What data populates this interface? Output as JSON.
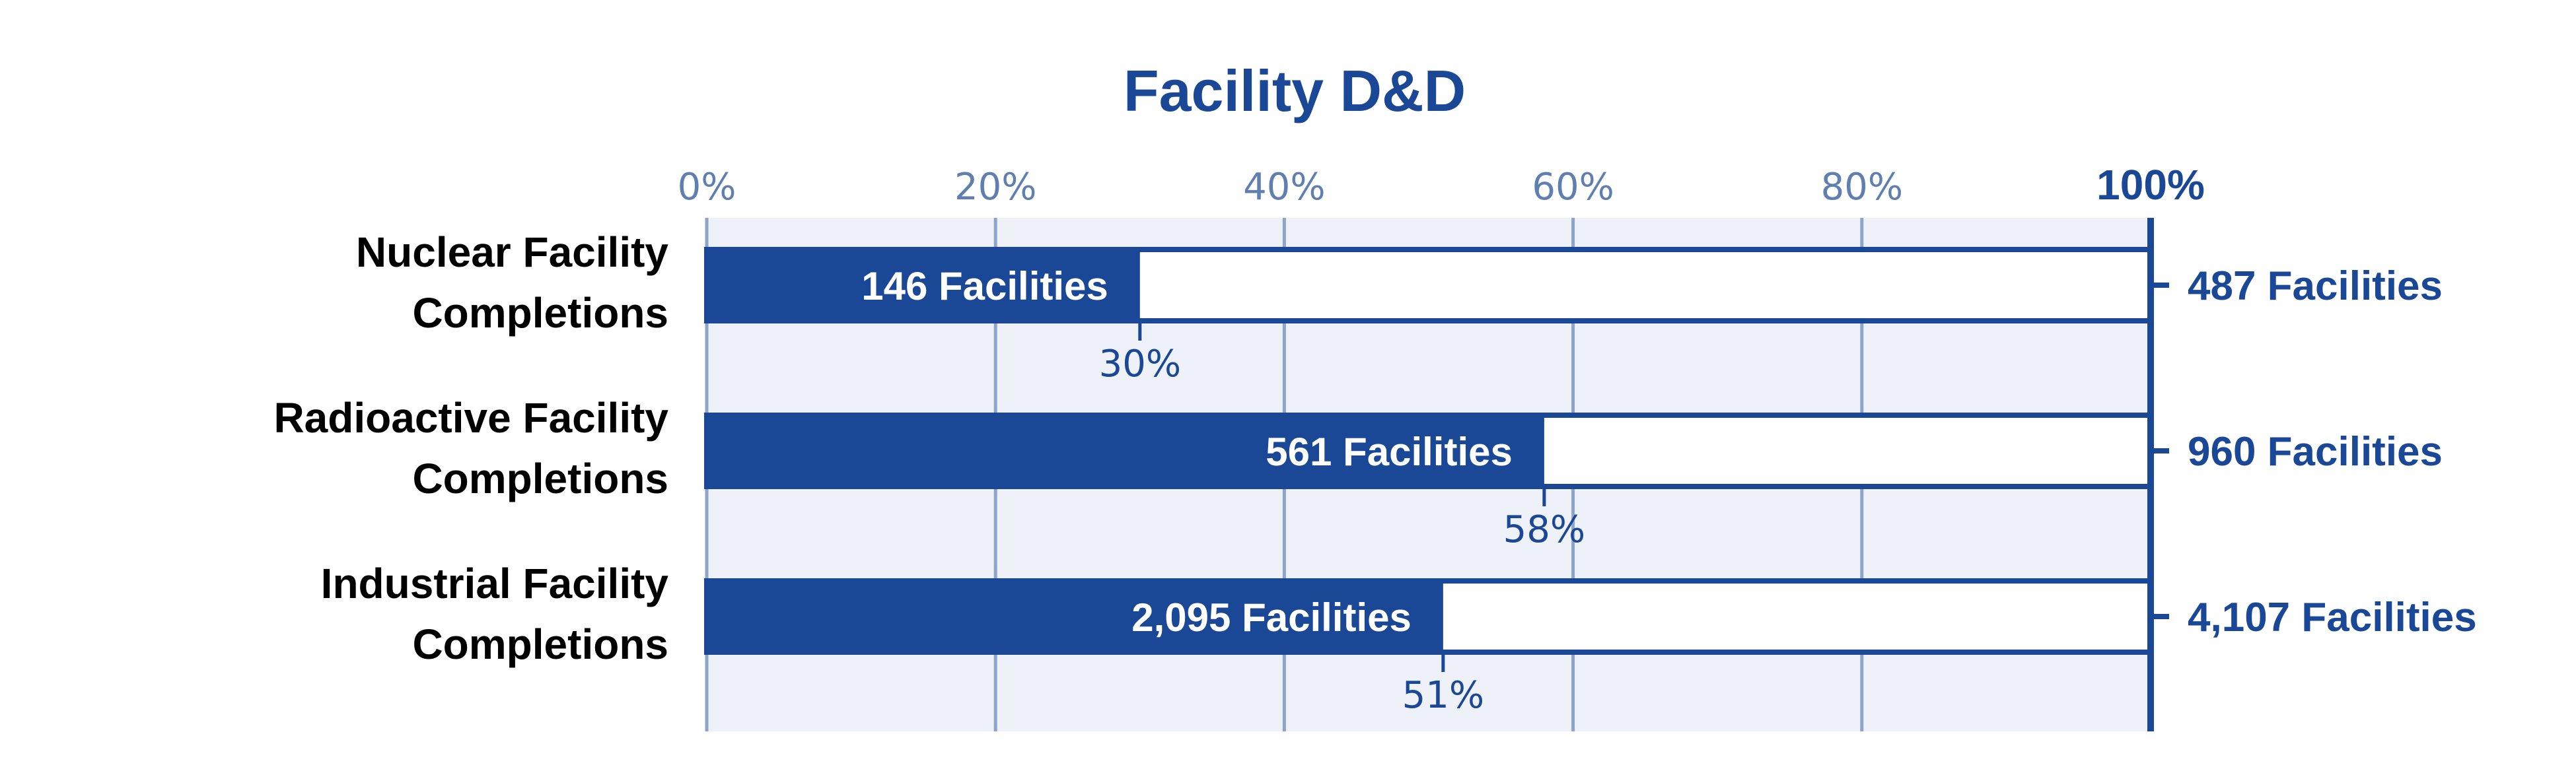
{
  "colors": {
    "accent": "#1a4796",
    "grid": "#8ea4c8",
    "tick_label": "#5f7fb0",
    "plot_background": "#eef1f7",
    "category_label": "#000000",
    "remaining_fill": "#ffffff"
  },
  "chart_data": {
    "type": "bar",
    "orientation": "horizontal",
    "stacked": true,
    "title": "Facility D&D",
    "xlim": [
      0,
      100
    ],
    "x_ticks": [
      "0%",
      "20%",
      "40%",
      "60%",
      "80%",
      "100%"
    ],
    "x_tick_values": [
      0,
      20,
      40,
      60,
      80,
      100
    ],
    "grid": true,
    "categories": [
      [
        "Nuclear Facility",
        "Completions"
      ],
      [
        "Radioactive Facility",
        "Completions"
      ],
      [
        "Industrial Facility",
        "Completions"
      ]
    ],
    "completed_percent": [
      30,
      58,
      51
    ],
    "completed_percent_labels": [
      "30%",
      "58%",
      "51%"
    ],
    "completed_labels": [
      "146 Facilities",
      "561 Facilities",
      "2,095 Facilities"
    ],
    "total_labels": [
      "487 Facilities",
      "960 Facilities",
      "4,107 Facilities"
    ],
    "completed_count": [
      146,
      561,
      2095
    ],
    "total_count": [
      487,
      960,
      4107
    ]
  }
}
